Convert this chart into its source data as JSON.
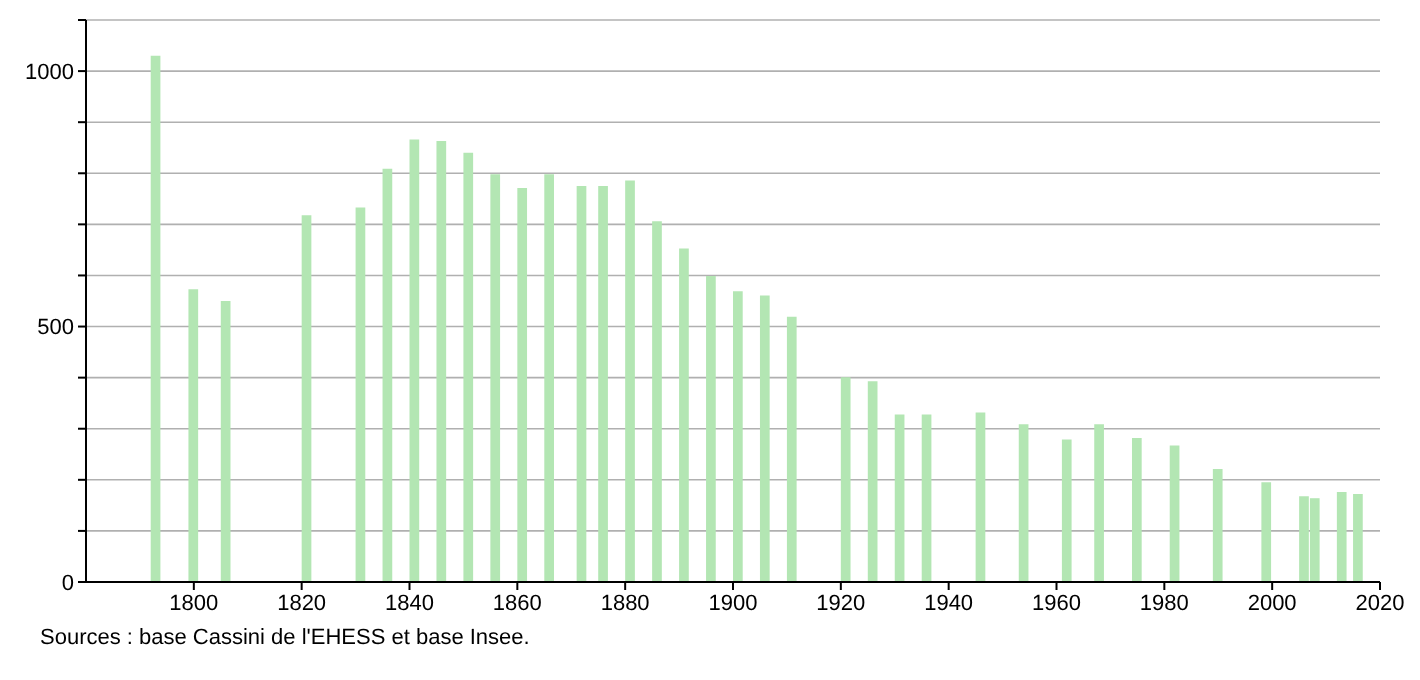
{
  "chart_data": {
    "type": "bar",
    "color": "#b3e6b3",
    "x": [
      1793,
      1800,
      1806,
      1821,
      1831,
      1836,
      1841,
      1846,
      1851,
      1856,
      1861,
      1866,
      1872,
      1876,
      1881,
      1886,
      1891,
      1896,
      1901,
      1906,
      1911,
      1921,
      1926,
      1931,
      1936,
      1946,
      1954,
      1962,
      1968,
      1975,
      1982,
      1990,
      1999,
      2006,
      2008,
      2013,
      2016
    ],
    "values": [
      1030,
      573,
      550,
      718,
      733,
      809,
      866,
      863,
      840,
      798,
      771,
      798,
      775,
      775,
      786,
      706,
      653,
      599,
      569,
      561,
      519,
      401,
      393,
      328,
      328,
      332,
      309,
      279,
      309,
      282,
      267,
      221,
      195,
      168,
      164,
      176,
      172
    ],
    "xlim": [
      1780,
      2020
    ],
    "xticks": [
      1800,
      1820,
      1840,
      1860,
      1880,
      1900,
      1920,
      1940,
      1960,
      1980,
      2000,
      2020
    ],
    "ylim": [
      0,
      1100
    ],
    "yticks": [
      0,
      {
        "value": 100,
        "label": null
      },
      {
        "value": 200,
        "label": null
      },
      {
        "value": 300,
        "label": null
      },
      {
        "value": 400,
        "label": null
      },
      500,
      {
        "value": 600,
        "label": null
      },
      {
        "value": 700,
        "label": null
      },
      {
        "value": 800,
        "label": null
      },
      {
        "value": 900,
        "label": null
      },
      1000,
      {
        "value": 1100,
        "label": null
      }
    ],
    "grid": "y",
    "annotations": [
      "Sources : base Cassini de l'EHESS et base Insee."
    ]
  }
}
